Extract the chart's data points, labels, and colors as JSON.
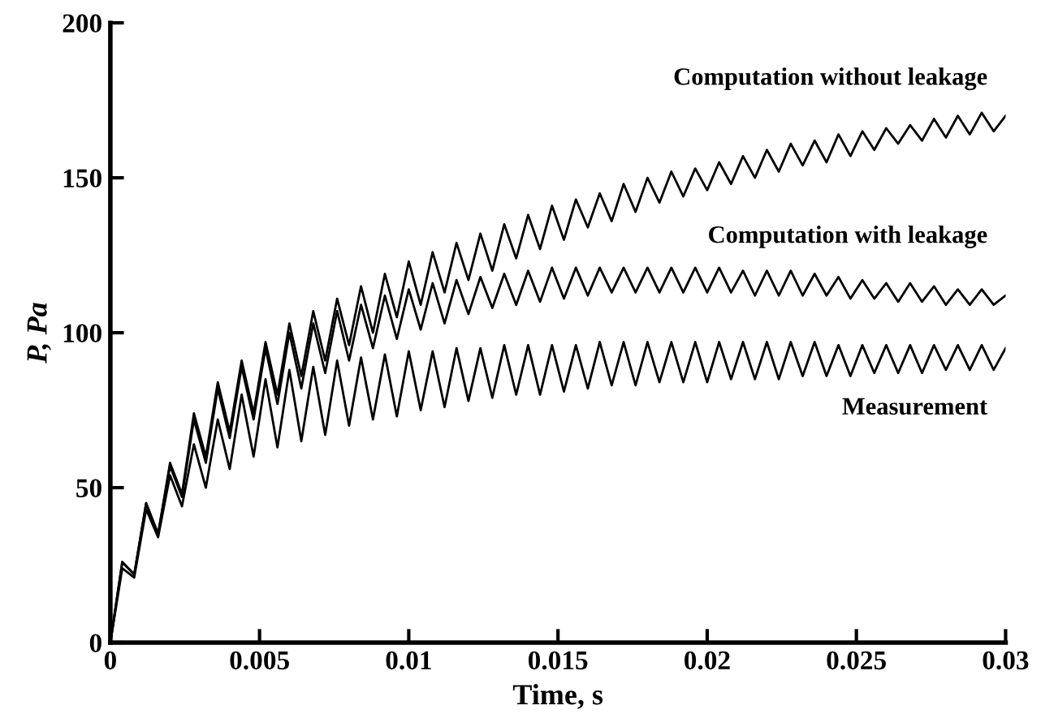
{
  "chart_data": {
    "type": "line",
    "xlabel": "Time, s",
    "ylabel": "P, Pa",
    "xlim": [
      0,
      0.03
    ],
    "xticks": [
      0,
      0.005,
      0.01,
      0.015,
      0.02,
      0.025,
      0.03
    ],
    "ylim": [
      0,
      200
    ],
    "yticks": [
      0,
      50,
      100,
      150,
      200
    ],
    "grid": false,
    "marker": "none",
    "line_style": "solid",
    "x": [
      0,
      0.0004,
      0.0008,
      0.0012,
      0.0016,
      0.002,
      0.0024,
      0.0028,
      0.0032,
      0.0036,
      0.004,
      0.0044,
      0.0048,
      0.0052,
      0.0056,
      0.006,
      0.0064,
      0.0068,
      0.0072,
      0.0076,
      0.008,
      0.0084,
      0.0088,
      0.0092,
      0.0096,
      0.01,
      0.0104,
      0.0108,
      0.0112,
      0.0116,
      0.012,
      0.0124,
      0.0128,
      0.0132,
      0.0136,
      0.014,
      0.0144,
      0.0148,
      0.0152,
      0.0156,
      0.016,
      0.0164,
      0.0168,
      0.0172,
      0.0176,
      0.018,
      0.0184,
      0.0188,
      0.0192,
      0.0196,
      0.02,
      0.0204,
      0.0208,
      0.0212,
      0.0216,
      0.022,
      0.0224,
      0.0228,
      0.0232,
      0.0236,
      0.024,
      0.0244,
      0.0248,
      0.0252,
      0.0256,
      0.026,
      0.0264,
      0.0268,
      0.0272,
      0.0276,
      0.028,
      0.0284,
      0.0288,
      0.0292,
      0.0296,
      0.03
    ],
    "series": [
      {
        "name": "Computation without leakage",
        "color": "#000000",
        "values": [
          0,
          26,
          22,
          45,
          35,
          58,
          48,
          74,
          60,
          84,
          68,
          91,
          74,
          97,
          80,
          103,
          86,
          107,
          91,
          111,
          96,
          115,
          100,
          119,
          105,
          123,
          109,
          126,
          113,
          129,
          117,
          132,
          120,
          135,
          124,
          138,
          127,
          141,
          130,
          143,
          134,
          145,
          136,
          148,
          139,
          150,
          142,
          152,
          144,
          153,
          146,
          155,
          148,
          157,
          150,
          159,
          152,
          161,
          154,
          162,
          155,
          164,
          157,
          165,
          159,
          166,
          161,
          167,
          162,
          169,
          163,
          170,
          164,
          171,
          165,
          170
        ]
      },
      {
        "name": "Computation with leakage",
        "color": "#000000",
        "values": [
          0,
          26,
          22,
          45,
          35,
          57,
          47,
          72,
          58,
          82,
          66,
          89,
          72,
          95,
          77,
          100,
          82,
          103,
          87,
          107,
          91,
          109,
          95,
          112,
          98,
          114,
          101,
          116,
          103,
          117,
          106,
          118,
          108,
          119,
          109,
          120,
          110,
          121,
          111,
          121,
          112,
          121,
          113,
          121,
          113,
          121,
          113,
          121,
          113,
          121,
          113,
          121,
          113,
          120,
          112,
          120,
          112,
          120,
          112,
          119,
          112,
          118,
          111,
          117,
          111,
          116,
          110,
          116,
          110,
          115,
          109,
          114,
          109,
          114,
          109,
          112
        ]
      },
      {
        "name": "Measurement",
        "color": "#000000",
        "values": [
          0,
          24,
          21,
          43,
          34,
          54,
          44,
          64,
          50,
          72,
          56,
          80,
          60,
          85,
          63,
          88,
          65,
          89,
          67,
          91,
          70,
          92,
          72,
          93,
          73,
          94,
          75,
          94,
          76,
          95,
          78,
          95,
          79,
          96,
          80,
          96,
          80,
          96,
          81,
          96,
          82,
          97,
          83,
          97,
          83,
          97,
          84,
          97,
          84,
          97,
          84,
          97,
          85,
          97,
          85,
          97,
          85,
          97,
          86,
          97,
          86,
          96,
          86,
          96,
          87,
          96,
          87,
          96,
          87,
          96,
          88,
          96,
          88,
          96,
          88,
          95
        ]
      }
    ]
  }
}
